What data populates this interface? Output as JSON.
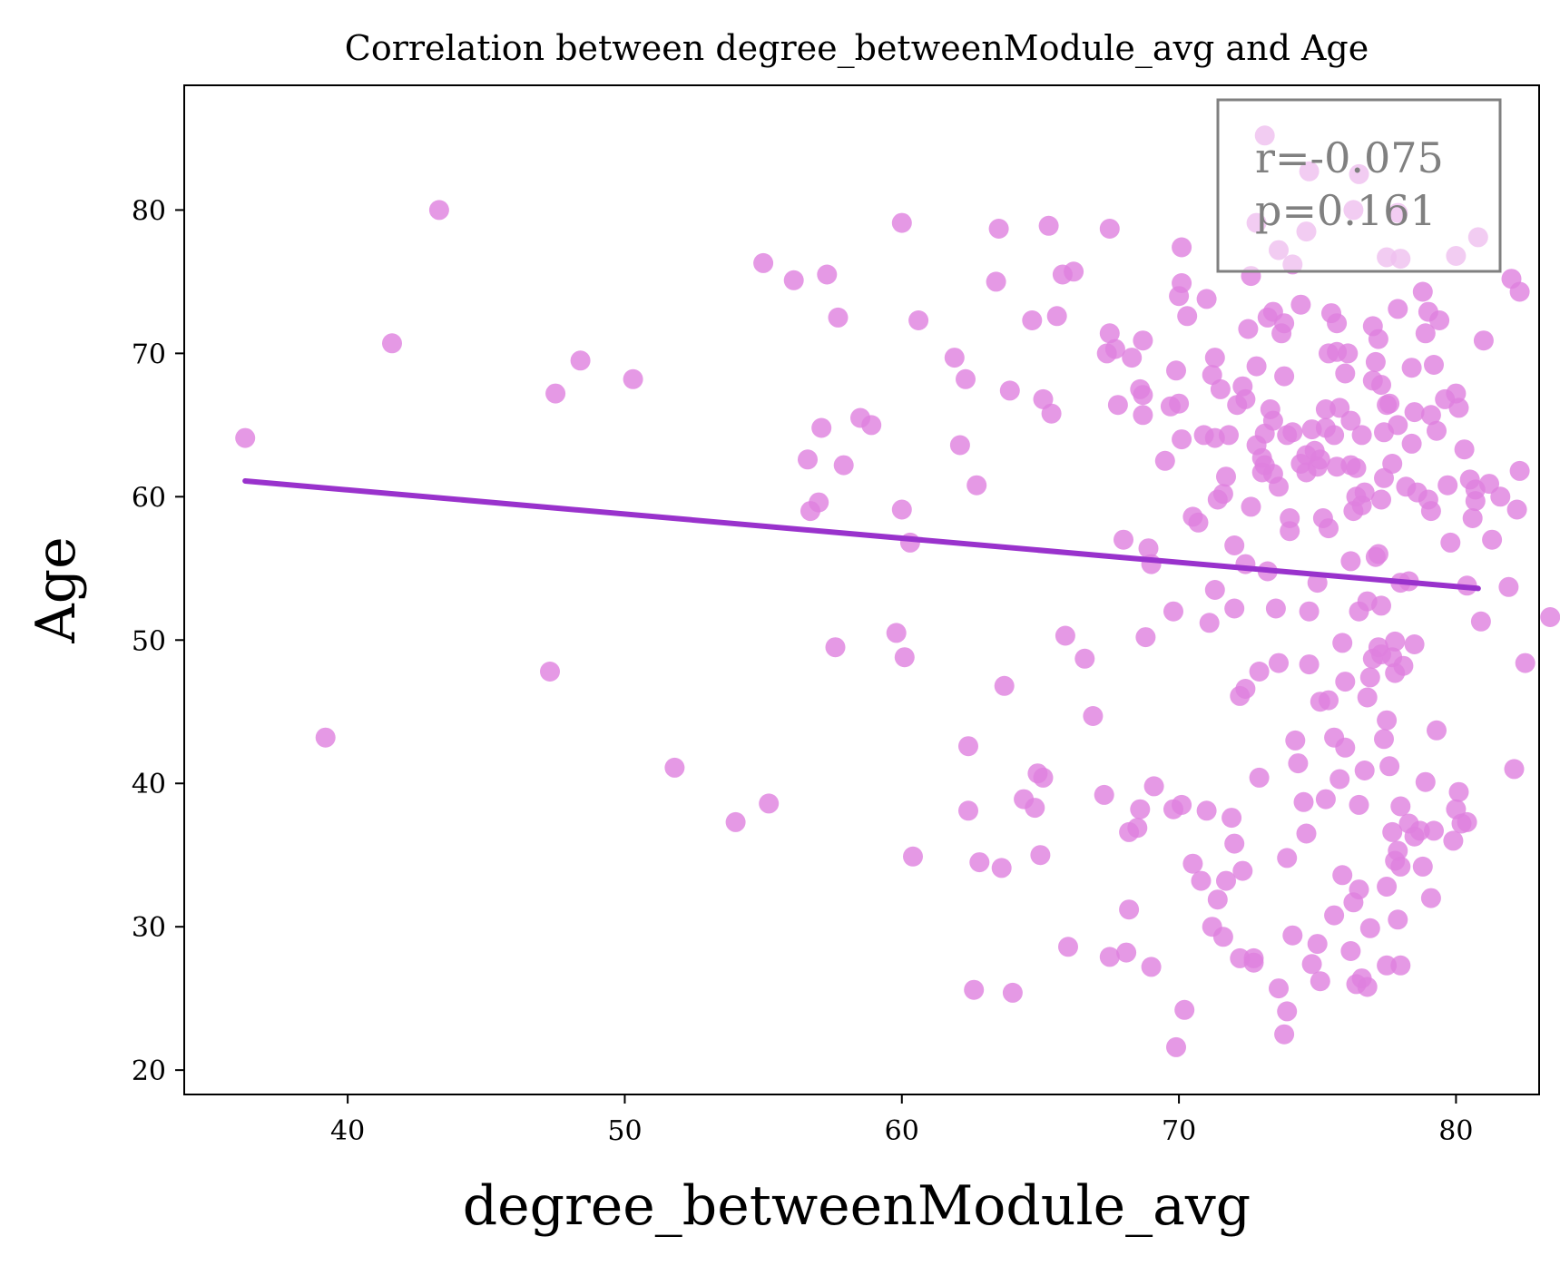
{
  "chart_data": {
    "type": "scatter",
    "title": "Correlation between degree_betweenModule_avg and Age",
    "xlabel": "degree_betweenModule_avg",
    "ylabel": "Age",
    "xlim": [
      34.1,
      83.0
    ],
    "ylim": [
      18.3,
      88.7
    ],
    "xticks": [
      40,
      50,
      60,
      70,
      80
    ],
    "yticks": [
      20,
      30,
      40,
      50,
      60,
      70,
      80
    ],
    "grid": false,
    "point_color": "#df80df",
    "line_color": "#9932cc",
    "annotation": {
      "r_text": "r=-0.075",
      "p_text": "p=0.161",
      "placement": "top-right"
    },
    "regression_line": {
      "x": [
        36.3,
        80.8
      ],
      "y": [
        61.1,
        53.6
      ]
    },
    "points": [
      [
        36.3,
        64.1
      ],
      [
        39.2,
        43.2
      ],
      [
        41.6,
        70.7
      ],
      [
        43.3,
        80.0
      ],
      [
        47.3,
        47.8
      ],
      [
        47.5,
        67.2
      ],
      [
        48.4,
        69.5
      ],
      [
        50.3,
        68.2
      ],
      [
        51.8,
        41.1
      ],
      [
        54.0,
        37.3
      ],
      [
        55.0,
        76.3
      ],
      [
        55.2,
        38.6
      ],
      [
        56.1,
        75.1
      ],
      [
        56.6,
        62.6
      ],
      [
        56.7,
        59.0
      ],
      [
        57.0,
        59.6
      ],
      [
        57.1,
        64.8
      ],
      [
        57.3,
        75.5
      ],
      [
        57.6,
        49.5
      ],
      [
        57.7,
        72.5
      ],
      [
        57.9,
        62.2
      ],
      [
        58.5,
        65.5
      ],
      [
        58.9,
        65.0
      ],
      [
        59.8,
        50.5
      ],
      [
        60.0,
        79.1
      ],
      [
        60.0,
        59.1
      ],
      [
        60.1,
        48.8
      ],
      [
        60.3,
        56.8
      ],
      [
        60.4,
        34.9
      ],
      [
        60.6,
        72.3
      ],
      [
        61.9,
        69.7
      ],
      [
        62.1,
        63.6
      ],
      [
        62.3,
        68.2
      ],
      [
        62.4,
        42.6
      ],
      [
        62.4,
        38.1
      ],
      [
        62.6,
        25.6
      ],
      [
        62.7,
        60.8
      ],
      [
        62.8,
        34.5
      ],
      [
        63.4,
        75.0
      ],
      [
        63.5,
        78.7
      ],
      [
        63.6,
        34.1
      ],
      [
        63.7,
        46.8
      ],
      [
        63.9,
        67.4
      ],
      [
        64.0,
        25.4
      ],
      [
        64.4,
        38.9
      ],
      [
        64.7,
        72.3
      ],
      [
        64.8,
        38.3
      ],
      [
        64.9,
        40.7
      ],
      [
        65.0,
        35.0
      ],
      [
        65.1,
        40.4
      ],
      [
        65.1,
        66.8
      ],
      [
        65.3,
        78.9
      ],
      [
        65.4,
        65.8
      ],
      [
        65.6,
        72.6
      ],
      [
        65.8,
        75.5
      ],
      [
        65.9,
        50.3
      ],
      [
        66.0,
        28.6
      ],
      [
        66.2,
        75.7
      ],
      [
        66.6,
        48.7
      ],
      [
        66.9,
        44.7
      ],
      [
        67.3,
        39.2
      ],
      [
        67.4,
        70.0
      ],
      [
        67.5,
        78.7
      ],
      [
        67.5,
        71.4
      ],
      [
        67.5,
        27.9
      ],
      [
        67.7,
        70.3
      ],
      [
        67.8,
        66.4
      ],
      [
        68.0,
        57.0
      ],
      [
        68.1,
        28.2
      ],
      [
        68.2,
        36.6
      ],
      [
        68.2,
        31.2
      ],
      [
        68.3,
        69.7
      ],
      [
        68.5,
        36.9
      ],
      [
        68.6,
        38.2
      ],
      [
        68.6,
        67.5
      ],
      [
        68.7,
        65.7
      ],
      [
        68.7,
        67.1
      ],
      [
        68.7,
        70.9
      ],
      [
        68.8,
        50.2
      ],
      [
        68.9,
        56.4
      ],
      [
        69.0,
        55.3
      ],
      [
        69.0,
        27.2
      ],
      [
        69.1,
        39.8
      ],
      [
        69.5,
        62.5
      ],
      [
        69.7,
        66.3
      ],
      [
        69.8,
        52.0
      ],
      [
        69.8,
        38.2
      ],
      [
        69.9,
        68.8
      ],
      [
        69.9,
        21.6
      ],
      [
        70.0,
        66.5
      ],
      [
        70.0,
        74.0
      ],
      [
        70.1,
        64.0
      ],
      [
        70.1,
        38.5
      ],
      [
        70.1,
        77.4
      ],
      [
        70.1,
        74.9
      ],
      [
        70.2,
        24.2
      ],
      [
        70.3,
        72.6
      ],
      [
        70.5,
        58.6
      ],
      [
        70.5,
        34.4
      ],
      [
        70.7,
        58.2
      ],
      [
        70.8,
        33.2
      ],
      [
        70.9,
        64.3
      ],
      [
        71.0,
        73.8
      ],
      [
        71.0,
        38.1
      ],
      [
        71.1,
        51.2
      ],
      [
        71.2,
        68.5
      ],
      [
        71.2,
        30.0
      ],
      [
        71.3,
        64.1
      ],
      [
        71.3,
        53.5
      ],
      [
        71.3,
        69.7
      ],
      [
        71.4,
        31.9
      ],
      [
        71.4,
        59.8
      ],
      [
        71.5,
        67.5
      ],
      [
        71.6,
        29.3
      ],
      [
        71.6,
        60.2
      ],
      [
        71.7,
        61.4
      ],
      [
        71.7,
        33.2
      ],
      [
        71.8,
        64.3
      ],
      [
        71.9,
        37.6
      ],
      [
        72.0,
        52.2
      ],
      [
        72.0,
        56.6
      ],
      [
        72.0,
        35.8
      ],
      [
        72.1,
        66.4
      ],
      [
        72.2,
        46.1
      ],
      [
        72.2,
        27.8
      ],
      [
        72.3,
        33.9
      ],
      [
        72.3,
        67.7
      ],
      [
        72.4,
        46.6
      ],
      [
        72.4,
        55.3
      ],
      [
        72.4,
        66.8
      ],
      [
        72.5,
        71.7
      ],
      [
        72.6,
        75.4
      ],
      [
        72.6,
        59.3
      ],
      [
        72.7,
        27.5
      ],
      [
        72.7,
        27.8
      ],
      [
        72.8,
        63.6
      ],
      [
        72.8,
        79.1
      ],
      [
        72.8,
        69.1
      ],
      [
        72.9,
        40.4
      ],
      [
        72.9,
        47.8
      ],
      [
        73.0,
        62.7
      ],
      [
        73.0,
        61.7
      ],
      [
        73.1,
        62.2
      ],
      [
        73.1,
        64.4
      ],
      [
        73.1,
        85.2
      ],
      [
        73.2,
        54.8
      ],
      [
        73.2,
        72.5
      ],
      [
        73.3,
        66.1
      ],
      [
        73.4,
        65.3
      ],
      [
        73.4,
        61.6
      ],
      [
        73.4,
        72.9
      ],
      [
        73.5,
        52.2
      ],
      [
        73.6,
        25.7
      ],
      [
        73.6,
        77.2
      ],
      [
        73.6,
        48.4
      ],
      [
        73.6,
        60.7
      ],
      [
        73.7,
        71.4
      ],
      [
        73.8,
        72.1
      ],
      [
        73.8,
        68.4
      ],
      [
        73.8,
        22.5
      ],
      [
        73.9,
        64.3
      ],
      [
        73.9,
        34.8
      ],
      [
        73.9,
        24.1
      ],
      [
        74.0,
        57.6
      ],
      [
        74.0,
        58.5
      ],
      [
        74.1,
        64.5
      ],
      [
        74.1,
        29.4
      ],
      [
        74.1,
        76.2
      ],
      [
        74.2,
        43.0
      ],
      [
        74.3,
        41.4
      ],
      [
        74.4,
        62.3
      ],
      [
        74.4,
        73.4
      ],
      [
        74.5,
        38.7
      ],
      [
        74.6,
        78.5
      ],
      [
        74.6,
        36.5
      ],
      [
        74.6,
        62.9
      ],
      [
        74.6,
        61.7
      ],
      [
        74.7,
        52.0
      ],
      [
        74.7,
        48.3
      ],
      [
        74.7,
        82.7
      ],
      [
        74.8,
        27.4
      ],
      [
        74.8,
        64.7
      ],
      [
        74.9,
        63.2
      ],
      [
        75.0,
        28.8
      ],
      [
        75.0,
        54.0
      ],
      [
        75.0,
        62.1
      ],
      [
        75.1,
        26.2
      ],
      [
        75.1,
        45.7
      ],
      [
        75.1,
        62.6
      ],
      [
        75.2,
        58.5
      ],
      [
        75.3,
        64.8
      ],
      [
        75.3,
        66.1
      ],
      [
        75.3,
        38.9
      ],
      [
        75.4,
        70.0
      ],
      [
        75.4,
        57.8
      ],
      [
        75.4,
        45.8
      ],
      [
        75.5,
        72.8
      ],
      [
        75.6,
        43.2
      ],
      [
        75.6,
        30.8
      ],
      [
        75.6,
        64.3
      ],
      [
        75.7,
        72.1
      ],
      [
        75.7,
        70.1
      ],
      [
        75.7,
        62.1
      ],
      [
        75.8,
        40.3
      ],
      [
        75.8,
        66.2
      ],
      [
        75.9,
        33.6
      ],
      [
        75.9,
        49.8
      ],
      [
        76.0,
        42.5
      ],
      [
        76.0,
        68.6
      ],
      [
        76.0,
        47.1
      ],
      [
        76.1,
        70.0
      ],
      [
        76.2,
        62.2
      ],
      [
        76.2,
        55.5
      ],
      [
        76.2,
        28.3
      ],
      [
        76.2,
        65.3
      ],
      [
        76.3,
        31.7
      ],
      [
        76.3,
        59.0
      ],
      [
        76.3,
        80.0
      ],
      [
        76.4,
        62.0
      ],
      [
        76.4,
        26.0
      ],
      [
        76.4,
        60.0
      ],
      [
        76.5,
        52.0
      ],
      [
        76.5,
        38.5
      ],
      [
        76.5,
        32.6
      ],
      [
        76.5,
        82.5
      ],
      [
        76.6,
        64.3
      ],
      [
        76.6,
        26.4
      ],
      [
        76.6,
        59.4
      ],
      [
        76.7,
        60.3
      ],
      [
        76.7,
        40.9
      ],
      [
        76.8,
        46.0
      ],
      [
        76.8,
        25.8
      ],
      [
        76.8,
        52.7
      ],
      [
        76.9,
        29.9
      ],
      [
        76.9,
        47.4
      ],
      [
        77.0,
        71.9
      ],
      [
        77.0,
        68.1
      ],
      [
        77.0,
        48.7
      ],
      [
        77.1,
        55.8
      ],
      [
        77.1,
        69.4
      ],
      [
        77.2,
        71.0
      ],
      [
        77.2,
        56.0
      ],
      [
        77.2,
        49.5
      ],
      [
        77.3,
        67.8
      ],
      [
        77.3,
        59.8
      ],
      [
        77.3,
        49.0
      ],
      [
        77.3,
        52.4
      ],
      [
        77.4,
        43.1
      ],
      [
        77.4,
        64.5
      ],
      [
        77.4,
        61.3
      ],
      [
        77.5,
        66.4
      ],
      [
        77.5,
        44.4
      ],
      [
        77.5,
        32.8
      ],
      [
        77.5,
        27.3
      ],
      [
        77.5,
        76.7
      ],
      [
        77.6,
        66.5
      ],
      [
        77.6,
        41.2
      ],
      [
        77.7,
        48.8
      ],
      [
        77.7,
        36.6
      ],
      [
        77.7,
        62.3
      ],
      [
        77.8,
        34.6
      ],
      [
        77.8,
        49.9
      ],
      [
        77.8,
        47.7
      ],
      [
        77.9,
        65.0
      ],
      [
        77.9,
        30.5
      ],
      [
        77.9,
        79.8
      ],
      [
        77.9,
        73.1
      ],
      [
        77.9,
        35.3
      ],
      [
        78.0,
        34.2
      ],
      [
        78.0,
        54.0
      ],
      [
        78.0,
        38.4
      ],
      [
        78.0,
        76.6
      ],
      [
        78.0,
        27.3
      ],
      [
        78.1,
        48.2
      ],
      [
        78.2,
        60.7
      ],
      [
        78.3,
        37.2
      ],
      [
        78.3,
        54.1
      ],
      [
        78.4,
        69.0
      ],
      [
        78.4,
        63.7
      ],
      [
        78.5,
        49.7
      ],
      [
        78.5,
        65.9
      ],
      [
        78.5,
        36.3
      ],
      [
        78.6,
        60.3
      ],
      [
        78.7,
        36.7
      ],
      [
        78.8,
        74.3
      ],
      [
        78.8,
        34.2
      ],
      [
        78.9,
        71.4
      ],
      [
        78.9,
        40.1
      ],
      [
        79.0,
        59.8
      ],
      [
        79.0,
        72.9
      ],
      [
        79.1,
        59.0
      ],
      [
        79.1,
        65.7
      ],
      [
        79.1,
        32.0
      ],
      [
        79.2,
        69.2
      ],
      [
        79.2,
        36.7
      ],
      [
        79.3,
        43.7
      ],
      [
        79.3,
        64.6
      ],
      [
        79.4,
        72.3
      ],
      [
        79.6,
        66.8
      ],
      [
        79.7,
        60.8
      ],
      [
        79.8,
        56.8
      ],
      [
        79.9,
        36.0
      ],
      [
        80.0,
        38.2
      ],
      [
        80.0,
        67.2
      ],
      [
        80.0,
        76.8
      ],
      [
        80.1,
        39.4
      ],
      [
        80.1,
        66.2
      ],
      [
        80.2,
        37.2
      ],
      [
        80.3,
        63.3
      ],
      [
        80.4,
        53.8
      ],
      [
        80.4,
        37.3
      ],
      [
        80.5,
        61.2
      ],
      [
        80.6,
        58.5
      ],
      [
        80.7,
        59.7
      ],
      [
        80.7,
        60.5
      ],
      [
        80.8,
        78.1
      ],
      [
        80.9,
        51.3
      ],
      [
        81.0,
        70.9
      ],
      [
        81.2,
        60.9
      ],
      [
        81.3,
        57.0
      ],
      [
        81.6,
        60.0
      ],
      [
        81.9,
        53.7
      ],
      [
        82.0,
        75.2
      ],
      [
        82.1,
        41.0
      ],
      [
        82.2,
        59.1
      ],
      [
        82.3,
        61.8
      ],
      [
        82.3,
        74.3
      ],
      [
        82.5,
        48.4
      ],
      [
        83.4,
        51.6
      ]
    ]
  }
}
